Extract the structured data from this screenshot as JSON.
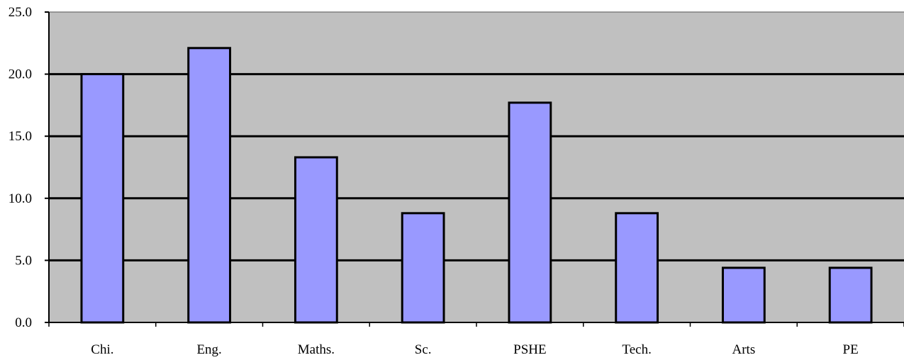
{
  "chart_data": {
    "type": "bar",
    "title": "",
    "xlabel": "",
    "ylabel": "",
    "categories": [
      "Chi.",
      "Eng.",
      "Maths.",
      "Sc.",
      "PSHE",
      "Tech.",
      "Arts",
      "PE"
    ],
    "values": [
      20.0,
      22.1,
      13.3,
      8.8,
      17.7,
      8.8,
      4.4,
      4.4
    ],
    "ylim": [
      0,
      25
    ],
    "yticks": [
      "0.0",
      "5.0",
      "10.0",
      "15.0",
      "20.0",
      "25.0"
    ],
    "grid": true,
    "legend": "none",
    "colors": {
      "bar_fill": "#9999ff",
      "bar_stroke": "#000000",
      "plot_background": "#c0c0c0",
      "gridline": "#000000"
    }
  }
}
